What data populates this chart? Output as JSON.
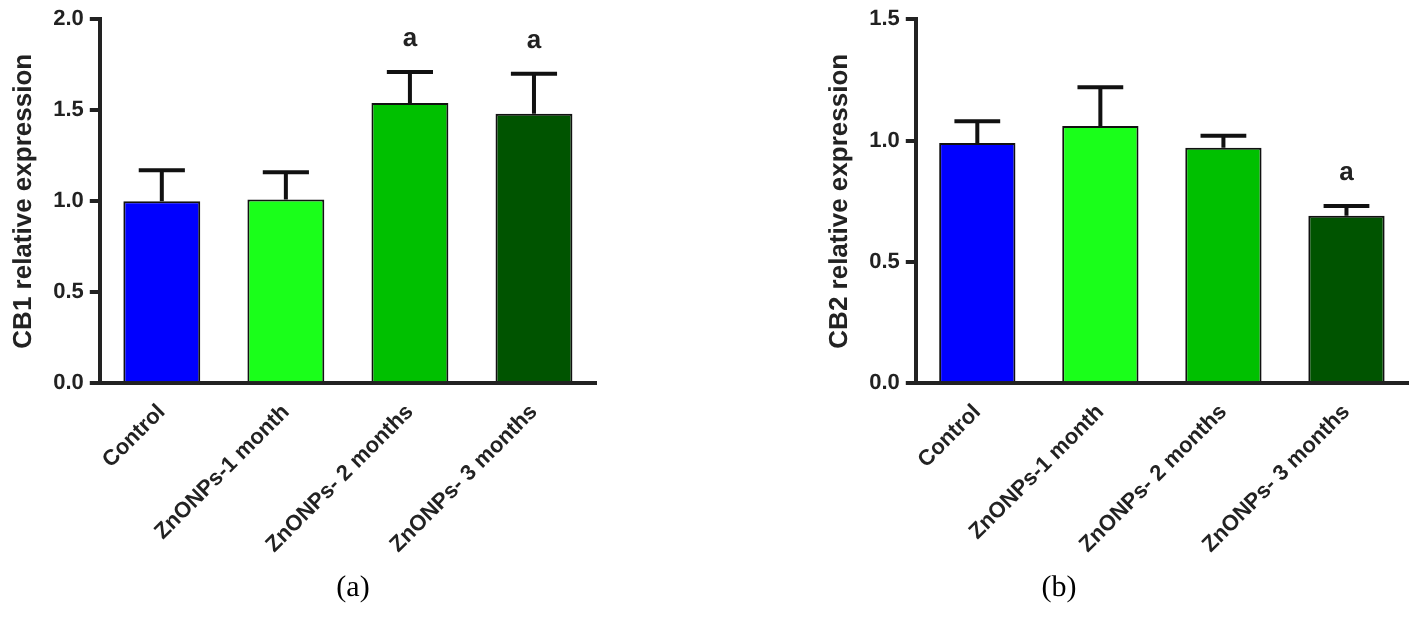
{
  "chart_data": [
    {
      "type": "bar",
      "ylabel": "CB1 relative expression",
      "categories": [
        "Control",
        "ZnONPs-1 month",
        "ZnONPs- 2 months",
        "ZnONPs- 3 months"
      ],
      "values": [
        1.0,
        1.01,
        1.54,
        1.48
      ],
      "colors": [
        "#0000ff",
        "#1aff1a",
        "#00c000",
        "#005400"
      ],
      "errors": [
        [
          1.0,
          1.17
        ],
        [
          1.01,
          1.16
        ],
        [
          1.54,
          1.71
        ],
        [
          1.48,
          1.7
        ]
      ],
      "value_labels": [
        null,
        null,
        "a",
        "a"
      ],
      "ylim": [
        0,
        2
      ],
      "yticks": [
        {
          "value": 0,
          "label": "0.0"
        },
        {
          "value": 0.5,
          "label": "0.5"
        },
        {
          "value": 1,
          "label": "1.0"
        },
        {
          "value": 1.5,
          "label": "1.5"
        },
        {
          "value": 2,
          "label": "2.0"
        }
      ],
      "grid": false,
      "legend": false,
      "annotations": [
        "(a)"
      ]
    },
    {
      "type": "bar",
      "ylabel": "CB2 relative expression",
      "categories": [
        "Control",
        "ZnONPs-1 month",
        "ZnONPs- 2 months",
        "ZnONPs- 3 months"
      ],
      "values": [
        0.99,
        1.06,
        0.97,
        0.69
      ],
      "colors": [
        "#0000ff",
        "#1aff1a",
        "#00c000",
        "#005400"
      ],
      "errors": [
        [
          0.99,
          1.08
        ],
        [
          1.06,
          1.22
        ],
        [
          0.97,
          1.02
        ],
        [
          0.69,
          0.73
        ]
      ],
      "value_labels": [
        null,
        null,
        null,
        "a"
      ],
      "ylim": [
        0,
        1.5
      ],
      "yticks": [
        {
          "value": 0,
          "label": "0.0"
        },
        {
          "value": 0.5,
          "label": "0.5"
        },
        {
          "value": 1,
          "label": "1.0"
        },
        {
          "value": 1.5,
          "label": "1.5"
        }
      ],
      "grid": false,
      "legend": false,
      "annotations": [
        "(b)"
      ]
    }
  ]
}
